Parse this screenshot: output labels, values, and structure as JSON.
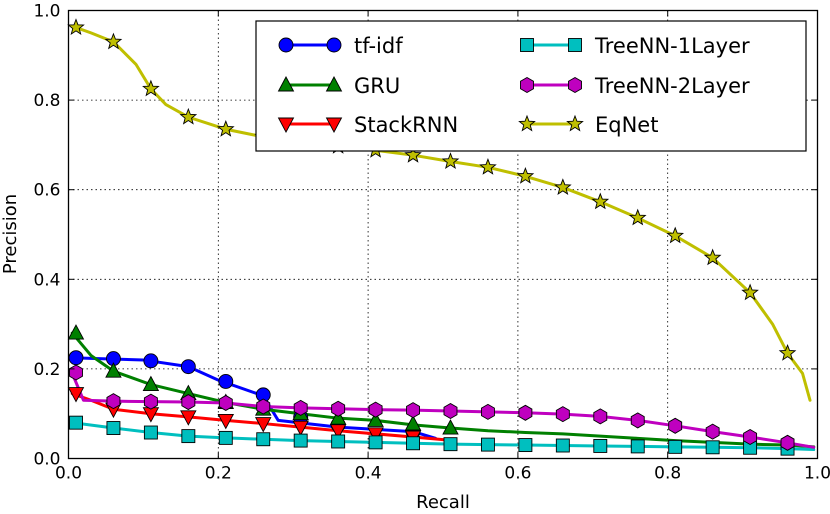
{
  "chart_data": {
    "type": "line",
    "title": "",
    "xlabel": "Recall",
    "ylabel": "Precision",
    "xlim": [
      0.0,
      1.0
    ],
    "ylim": [
      0.0,
      1.0
    ],
    "grid": true,
    "legend_position": "top-right",
    "x_ticks": [
      "0.0",
      "0.2",
      "0.4",
      "0.6",
      "0.8",
      "1.0"
    ],
    "y_ticks": [
      "0.0",
      "0.2",
      "0.4",
      "0.6",
      "0.8",
      "1.0"
    ],
    "series": [
      {
        "name": "tf-idf",
        "color": "#0000ff",
        "marker": "circle",
        "line": [
          [
            0.005,
            0.225
          ],
          [
            0.04,
            0.223
          ],
          [
            0.1,
            0.22
          ],
          [
            0.16,
            0.205
          ],
          [
            0.2,
            0.175
          ],
          [
            0.26,
            0.14
          ],
          [
            0.28,
            0.085
          ],
          [
            0.36,
            0.07
          ],
          [
            0.46,
            0.06
          ],
          [
            0.49,
            0.045
          ]
        ],
        "markers": [
          [
            0.01,
            0.225
          ],
          [
            0.06,
            0.223
          ],
          [
            0.11,
            0.218
          ],
          [
            0.16,
            0.205
          ],
          [
            0.21,
            0.172
          ],
          [
            0.26,
            0.142
          ],
          [
            0.31,
            0.092
          ],
          [
            0.36,
            0.075
          ],
          [
            0.46,
            0.06
          ]
        ]
      },
      {
        "name": "GRU",
        "color": "#008000",
        "marker": "triangle-up",
        "line": [
          [
            0.005,
            0.28
          ],
          [
            0.03,
            0.23
          ],
          [
            0.06,
            0.195
          ],
          [
            0.11,
            0.165
          ],
          [
            0.16,
            0.145
          ],
          [
            0.21,
            0.125
          ],
          [
            0.26,
            0.11
          ],
          [
            0.31,
            0.1
          ],
          [
            0.36,
            0.09
          ],
          [
            0.41,
            0.085
          ],
          [
            0.46,
            0.075
          ],
          [
            0.51,
            0.068
          ],
          [
            0.56,
            0.062
          ],
          [
            0.61,
            0.058
          ],
          [
            0.66,
            0.055
          ],
          [
            0.71,
            0.05
          ],
          [
            0.76,
            0.045
          ],
          [
            0.81,
            0.04
          ],
          [
            0.86,
            0.036
          ],
          [
            0.91,
            0.032
          ],
          [
            0.96,
            0.03
          ],
          [
            0.995,
            0.026
          ]
        ],
        "markers": [
          [
            0.01,
            0.28
          ],
          [
            0.06,
            0.195
          ],
          [
            0.11,
            0.165
          ],
          [
            0.16,
            0.145
          ],
          [
            0.21,
            0.125
          ],
          [
            0.26,
            0.11
          ],
          [
            0.31,
            0.1
          ],
          [
            0.36,
            0.09
          ],
          [
            0.41,
            0.085
          ],
          [
            0.46,
            0.077
          ],
          [
            0.51,
            0.068
          ]
        ]
      },
      {
        "name": "StackRNN",
        "color": "#ff0000",
        "marker": "triangle-down",
        "line": [
          [
            0.005,
            0.145
          ],
          [
            0.03,
            0.13
          ],
          [
            0.06,
            0.11
          ],
          [
            0.11,
            0.1
          ],
          [
            0.16,
            0.093
          ],
          [
            0.21,
            0.085
          ],
          [
            0.26,
            0.078
          ],
          [
            0.31,
            0.07
          ],
          [
            0.36,
            0.062
          ],
          [
            0.41,
            0.055
          ],
          [
            0.46,
            0.048
          ],
          [
            0.5,
            0.042
          ]
        ],
        "markers": [
          [
            0.01,
            0.145
          ],
          [
            0.06,
            0.11
          ],
          [
            0.11,
            0.1
          ],
          [
            0.16,
            0.093
          ],
          [
            0.21,
            0.085
          ],
          [
            0.26,
            0.078
          ],
          [
            0.31,
            0.07
          ],
          [
            0.36,
            0.062
          ],
          [
            0.41,
            0.055
          ],
          [
            0.46,
            0.048
          ]
        ]
      },
      {
        "name": "TreeNN-1Layer",
        "color": "#00bfbf",
        "marker": "square",
        "line": [
          [
            0.005,
            0.08
          ],
          [
            0.06,
            0.068
          ],
          [
            0.11,
            0.058
          ],
          [
            0.16,
            0.05
          ],
          [
            0.21,
            0.046
          ],
          [
            0.26,
            0.043
          ],
          [
            0.31,
            0.04
          ],
          [
            0.36,
            0.038
          ],
          [
            0.41,
            0.036
          ],
          [
            0.46,
            0.034
          ],
          [
            0.51,
            0.032
          ],
          [
            0.56,
            0.031
          ],
          [
            0.61,
            0.03
          ],
          [
            0.66,
            0.029
          ],
          [
            0.71,
            0.028
          ],
          [
            0.76,
            0.027
          ],
          [
            0.81,
            0.026
          ],
          [
            0.86,
            0.025
          ],
          [
            0.91,
            0.024
          ],
          [
            0.96,
            0.022
          ],
          [
            0.995,
            0.02
          ]
        ],
        "markers": [
          [
            0.01,
            0.08
          ],
          [
            0.06,
            0.068
          ],
          [
            0.11,
            0.058
          ],
          [
            0.16,
            0.05
          ],
          [
            0.21,
            0.046
          ],
          [
            0.26,
            0.043
          ],
          [
            0.31,
            0.04
          ],
          [
            0.36,
            0.038
          ],
          [
            0.41,
            0.036
          ],
          [
            0.46,
            0.034
          ],
          [
            0.51,
            0.032
          ],
          [
            0.56,
            0.031
          ],
          [
            0.61,
            0.03
          ],
          [
            0.66,
            0.029
          ],
          [
            0.71,
            0.028
          ],
          [
            0.76,
            0.027
          ],
          [
            0.81,
            0.026
          ],
          [
            0.86,
            0.025
          ],
          [
            0.91,
            0.024
          ],
          [
            0.96,
            0.022
          ]
        ]
      },
      {
        "name": "TreeNN-2Layer",
        "color": "#bf00bf",
        "marker": "hexagon",
        "line": [
          [
            0.005,
            0.19
          ],
          [
            0.02,
            0.13
          ],
          [
            0.06,
            0.128
          ],
          [
            0.11,
            0.127
          ],
          [
            0.16,
            0.126
          ],
          [
            0.21,
            0.124
          ],
          [
            0.26,
            0.116
          ],
          [
            0.31,
            0.113
          ],
          [
            0.36,
            0.111
          ],
          [
            0.41,
            0.109
          ],
          [
            0.46,
            0.108
          ],
          [
            0.51,
            0.106
          ],
          [
            0.56,
            0.104
          ],
          [
            0.61,
            0.102
          ],
          [
            0.66,
            0.099
          ],
          [
            0.71,
            0.094
          ],
          [
            0.76,
            0.085
          ],
          [
            0.81,
            0.073
          ],
          [
            0.86,
            0.06
          ],
          [
            0.91,
            0.048
          ],
          [
            0.96,
            0.035
          ],
          [
            0.995,
            0.025
          ]
        ],
        "markers": [
          [
            0.01,
            0.192
          ],
          [
            0.06,
            0.128
          ],
          [
            0.11,
            0.127
          ],
          [
            0.16,
            0.126
          ],
          [
            0.21,
            0.124
          ],
          [
            0.26,
            0.116
          ],
          [
            0.31,
            0.113
          ],
          [
            0.36,
            0.111
          ],
          [
            0.41,
            0.109
          ],
          [
            0.46,
            0.108
          ],
          [
            0.51,
            0.106
          ],
          [
            0.56,
            0.104
          ],
          [
            0.61,
            0.102
          ],
          [
            0.66,
            0.099
          ],
          [
            0.71,
            0.094
          ],
          [
            0.76,
            0.085
          ],
          [
            0.81,
            0.073
          ],
          [
            0.86,
            0.06
          ],
          [
            0.91,
            0.048
          ],
          [
            0.96,
            0.035
          ]
        ]
      },
      {
        "name": "EqNet",
        "color": "#bfbf00",
        "marker": "star",
        "line": [
          [
            0.005,
            0.965
          ],
          [
            0.03,
            0.95
          ],
          [
            0.06,
            0.93
          ],
          [
            0.09,
            0.88
          ],
          [
            0.11,
            0.825
          ],
          [
            0.13,
            0.79
          ],
          [
            0.16,
            0.762
          ],
          [
            0.21,
            0.735
          ],
          [
            0.26,
            0.718
          ],
          [
            0.31,
            0.705
          ],
          [
            0.36,
            0.697
          ],
          [
            0.41,
            0.688
          ],
          [
            0.46,
            0.677
          ],
          [
            0.51,
            0.663
          ],
          [
            0.56,
            0.65
          ],
          [
            0.61,
            0.63
          ],
          [
            0.66,
            0.605
          ],
          [
            0.71,
            0.573
          ],
          [
            0.76,
            0.537
          ],
          [
            0.81,
            0.497
          ],
          [
            0.86,
            0.448
          ],
          [
            0.91,
            0.37
          ],
          [
            0.94,
            0.3
          ],
          [
            0.96,
            0.235
          ],
          [
            0.98,
            0.19
          ],
          [
            0.99,
            0.13
          ]
        ],
        "markers": [
          [
            0.01,
            0.962
          ],
          [
            0.06,
            0.93
          ],
          [
            0.11,
            0.825
          ],
          [
            0.16,
            0.762
          ],
          [
            0.21,
            0.735
          ],
          [
            0.26,
            0.718
          ],
          [
            0.31,
            0.705
          ],
          [
            0.36,
            0.697
          ],
          [
            0.41,
            0.688
          ],
          [
            0.46,
            0.677
          ],
          [
            0.51,
            0.663
          ],
          [
            0.56,
            0.65
          ],
          [
            0.61,
            0.63
          ],
          [
            0.66,
            0.605
          ],
          [
            0.71,
            0.573
          ],
          [
            0.76,
            0.537
          ],
          [
            0.81,
            0.497
          ],
          [
            0.86,
            0.448
          ],
          [
            0.91,
            0.37
          ],
          [
            0.96,
            0.235
          ]
        ]
      }
    ]
  }
}
